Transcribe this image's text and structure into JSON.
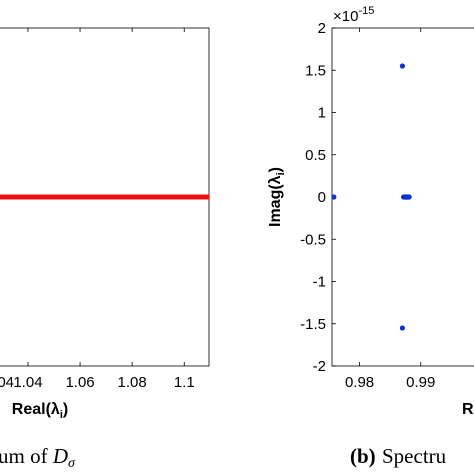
{
  "chart_data": [
    {
      "panel": "a",
      "type": "scatter",
      "xlabel_main": "Real(λ",
      "xlabel_sub": "i",
      "xlabel_close": ")",
      "xlim": [
        1.0285,
        1.1095
      ],
      "xticks": [
        1.04,
        1.06,
        1.08,
        1.1
      ],
      "xtick_labels": [
        "1.04",
        "1.06",
        "1.08",
        "1.1"
      ],
      "series": [
        {
          "x_range": [
            1.0285,
            1.1095
          ],
          "y": 0,
          "color": "#ee1111",
          "style": "dense-points"
        }
      ],
      "caption_prefix": "um of ",
      "caption_var": "D",
      "caption_sub": "σ",
      "grid": false,
      "box": true
    },
    {
      "panel": "b",
      "type": "scatter",
      "ylabel_main": "Imag(λ",
      "ylabel_sub": "i",
      "ylabel_close": ")",
      "xlabel_main": "Re",
      "ylim": [
        -2,
        2
      ],
      "yticks": [
        -2,
        -1.5,
        -1,
        -0.5,
        0,
        0.5,
        1,
        1.5,
        2
      ],
      "ytick_labels": [
        "-2",
        "-1.5",
        "-1",
        "-0.5",
        "0",
        "0.5",
        "1",
        "1.5",
        "2"
      ],
      "y_multiplier_base": "×10",
      "y_multiplier_exp": "-15",
      "xlim": [
        0.9755,
        1.0
      ],
      "xticks": [
        0.98,
        0.99
      ],
      "xtick_labels": [
        "0.98",
        "0.99"
      ],
      "series": [
        {
          "color": "#1133cc",
          "points": [
            {
              "x": 0.9758,
              "y": 0
            },
            {
              "x": 0.987,
              "y": 1.55
            },
            {
              "x": 0.987,
              "y": -1.55
            },
            {
              "x": 0.9872,
              "y": 0
            },
            {
              "x": 0.9874,
              "y": 0
            },
            {
              "x": 0.9875,
              "y": 0
            },
            {
              "x": 0.9876,
              "y": 0
            },
            {
              "x": 0.9877,
              "y": 0
            },
            {
              "x": 0.9878,
              "y": 0
            },
            {
              "x": 0.9879,
              "y": 0
            },
            {
              "x": 0.988,
              "y": 0
            },
            {
              "x": 0.9881,
              "y": 0
            }
          ]
        }
      ],
      "caption_label": "(b)",
      "caption_text": "Spectru",
      "grid": false,
      "box": true
    }
  ]
}
